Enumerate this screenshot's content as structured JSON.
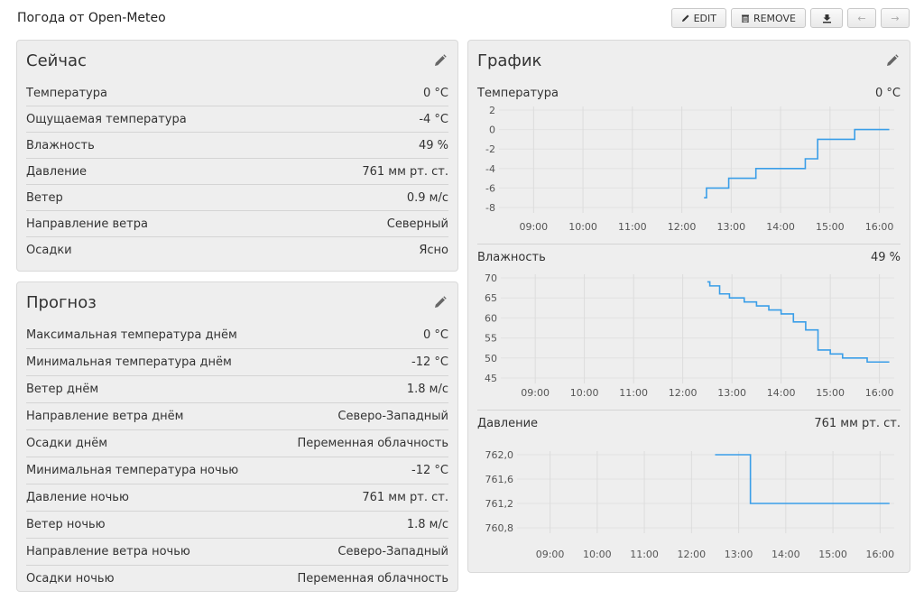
{
  "title": "Погода от Open-Meteo",
  "toolbar": {
    "edit": "EDIT",
    "remove": "REMOVE",
    "back_arrow": "←",
    "forward_arrow": "→"
  },
  "now": {
    "title": "Сейчас",
    "rows": [
      {
        "label": "Температура",
        "value": "0 °C"
      },
      {
        "label": "Ощущаемая температура",
        "value": "-4 °C"
      },
      {
        "label": "Влажность",
        "value": "49 %"
      },
      {
        "label": "Давление",
        "value": "761 мм рт. ст."
      },
      {
        "label": "Ветер",
        "value": "0.9 м/с"
      },
      {
        "label": "Направление ветра",
        "value": "Северный"
      },
      {
        "label": "Осадки",
        "value": "Ясно"
      }
    ]
  },
  "forecast": {
    "title": "Прогноз",
    "rows": [
      {
        "label": "Максимальная температура днём",
        "value": "0 °C"
      },
      {
        "label": "Минимальная температура днём",
        "value": "-12 °C"
      },
      {
        "label": "Ветер днём",
        "value": "1.8 м/с"
      },
      {
        "label": "Направление ветра днём",
        "value": "Северо-Западный"
      },
      {
        "label": "Осадки днём",
        "value": "Переменная облачность"
      },
      {
        "label": "Минимальная температура ночью",
        "value": "-12 °C"
      },
      {
        "label": "Давление ночью",
        "value": "761 мм рт. ст."
      },
      {
        "label": "Ветер ночью",
        "value": "1.8 м/с"
      },
      {
        "label": "Направление ветра ночью",
        "value": "Северо-Западный"
      },
      {
        "label": "Осадки ночью",
        "value": "Переменная облачность"
      }
    ]
  },
  "graph": {
    "title": "График",
    "line_color": "#3a9ee8"
  },
  "chart_data": [
    {
      "type": "line",
      "title": "Температура",
      "current": "0 °C",
      "x_ticks": [
        "09:00",
        "10:00",
        "11:00",
        "12:00",
        "13:00",
        "14:00",
        "15:00",
        "16:00"
      ],
      "x_range": [
        8.3,
        16.3
      ],
      "y_ticks": [
        "2",
        "0",
        "-2",
        "-4",
        "-6",
        "-8"
      ],
      "y_tick_values": [
        2,
        0,
        -2,
        -4,
        -6,
        -8
      ],
      "ylim": [
        -8,
        2
      ],
      "step": true,
      "x": [
        12.45,
        12.5,
        12.95,
        13.5,
        14.5,
        14.75,
        15.5,
        16.2
      ],
      "y": [
        -7,
        -6,
        -5,
        -4,
        -3,
        -1,
        0,
        0
      ]
    },
    {
      "type": "line",
      "title": "Влажность",
      "current": "49 %",
      "x_ticks": [
        "09:00",
        "10:00",
        "11:00",
        "12:00",
        "13:00",
        "14:00",
        "15:00",
        "16:00"
      ],
      "x_range": [
        8.3,
        16.3
      ],
      "y_ticks": [
        "70",
        "65",
        "60",
        "55",
        "50",
        "45"
      ],
      "y_tick_values": [
        70,
        65,
        60,
        55,
        50,
        45
      ],
      "ylim": [
        45,
        70
      ],
      "step": true,
      "x": [
        12.5,
        12.55,
        12.75,
        12.95,
        13.25,
        13.5,
        13.75,
        14.0,
        14.25,
        14.5,
        14.75,
        15.0,
        15.25,
        15.75,
        16.2
      ],
      "y": [
        69,
        68,
        66,
        65,
        64,
        63,
        62,
        61,
        59,
        57,
        52,
        51,
        50,
        49,
        49
      ]
    },
    {
      "type": "line",
      "title": "Давление",
      "current": "761 мм рт. ст.",
      "x_ticks": [
        "09:00",
        "10:00",
        "11:00",
        "12:00",
        "13:00",
        "14:00",
        "15:00",
        "16:00"
      ],
      "x_range": [
        8.3,
        16.3
      ],
      "y_ticks": [
        "762,0",
        "761,6",
        "761,2",
        "760,8"
      ],
      "y_tick_values": [
        762.0,
        761.6,
        761.2,
        760.8
      ],
      "ylim": [
        760.8,
        762.0
      ],
      "step": true,
      "x": [
        12.5,
        13.25,
        16.2
      ],
      "y": [
        762.0,
        761.2,
        761.2
      ]
    }
  ]
}
